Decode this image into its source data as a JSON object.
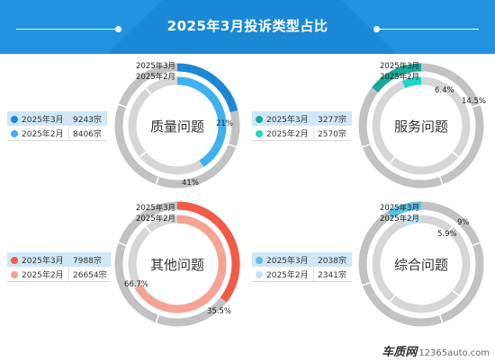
{
  "title": "2025年3月投诉类型占比",
  "watermark": {
    "brand": "车质网",
    "site": "12365auto.com"
  },
  "chart_data": [
    {
      "type": "donut",
      "center_label": "质量问题",
      "series": [
        {
          "name": "2025年3月",
          "value": 9243,
          "display": "9243宗",
          "percent": 21,
          "percent_label": "21%",
          "color": "#1b88d6"
        },
        {
          "name": "2025年2月",
          "value": 8406,
          "display": "8406宗",
          "percent": 41,
          "percent_label": "41%",
          "color": "#3fb1f0"
        }
      ]
    },
    {
      "type": "donut",
      "center_label": "服务问题",
      "series": [
        {
          "name": "2025年3月",
          "value": 3277,
          "display": "3277宗",
          "percent": 14.5,
          "percent_label": "14.5%",
          "color": "#19a99a"
        },
        {
          "name": "2025年2月",
          "value": 2570,
          "display": "2570宗",
          "percent": 6.4,
          "percent_label": "6.4%",
          "color": "#1fd5c7"
        }
      ]
    },
    {
      "type": "donut",
      "center_label": "其他问题",
      "series": [
        {
          "name": "2025年3月",
          "value": 7988,
          "display": "7988宗",
          "percent": 35.5,
          "percent_label": "35.5%",
          "color": "#f15b47"
        },
        {
          "name": "2025年2月",
          "value": 26654,
          "display": "26654宗",
          "percent": 66.7,
          "percent_label": "66.7%",
          "color": "#f4a395"
        }
      ]
    },
    {
      "type": "donut",
      "center_label": "综合问题",
      "series": [
        {
          "name": "2025年3月",
          "value": 2038,
          "display": "2038宗",
          "percent": 9,
          "percent_label": "9%",
          "color": "#5bc0e3"
        },
        {
          "name": "2025年2月",
          "value": 2341,
          "display": "2341宗",
          "percent": 5.9,
          "percent_label": "5.9%",
          "color": "#bfe3f4"
        }
      ]
    }
  ]
}
